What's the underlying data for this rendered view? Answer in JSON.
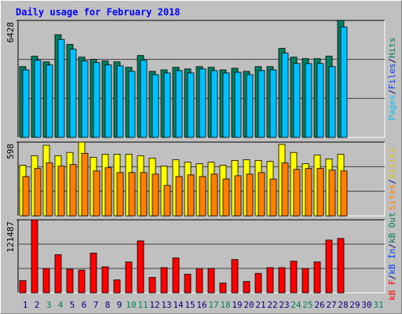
{
  "chart_data": [
    {
      "type": "bar",
      "title": "Daily usage for February 2018",
      "ylim": [
        0,
        6428
      ],
      "yticks": [
        6428
      ],
      "y_label_parts": [
        {
          "text": "Pages",
          "color": "#00c0ff"
        },
        {
          "text": "/",
          "color": "#000080"
        },
        {
          "text": "Files",
          "color": "#0040ff"
        },
        {
          "text": "/",
          "color": "#000080"
        },
        {
          "text": "Hits",
          "color": "#008060"
        }
      ],
      "series": [
        {
          "name": "Hits",
          "color": "#008060",
          "values": [
            3890,
            4460,
            4150,
            5640,
            5110,
            4410,
            4280,
            4200,
            4150,
            3850,
            4500,
            3630,
            3710,
            3850,
            3760,
            3890,
            3850,
            3710,
            3800,
            3630,
            3890,
            3890,
            4890,
            4410,
            4330,
            4330,
            4460,
            6428,
            null,
            null,
            null
          ]
        },
        {
          "name": "Files",
          "color": "#00c0ff",
          "values": [
            3710,
            4240,
            3980,
            5380,
            4850,
            4200,
            4110,
            3980,
            3930,
            3630,
            4240,
            3450,
            3540,
            3670,
            3540,
            3760,
            3670,
            3540,
            3580,
            3450,
            3670,
            3710,
            4630,
            4060,
            4060,
            4060,
            3890,
            6070,
            null,
            null,
            null
          ]
        }
      ]
    },
    {
      "type": "bar",
      "ylim": [
        0,
        598
      ],
      "yticks": [
        598
      ],
      "y_label_parts": [
        {
          "text": "Sites",
          "color": "#ff8000"
        },
        {
          "text": "/",
          "color": "#000080"
        },
        {
          "text": "Visits",
          "color": "#e0c000"
        }
      ],
      "series": [
        {
          "name": "Visits",
          "color": "#ffff00",
          "values": [
            410,
            488,
            572,
            488,
            514,
            598,
            475,
            500,
            500,
            500,
            488,
            468,
            403,
            455,
            436,
            423,
            436,
            410,
            449,
            455,
            449,
            442,
            579,
            514,
            423,
            494,
            462,
            500,
            null,
            null,
            null
          ]
        },
        {
          "name": "Sites",
          "color": "#ff8000",
          "values": [
            319,
            384,
            429,
            403,
            416,
            507,
            364,
            390,
            351,
            351,
            351,
            338,
            247,
            319,
            332,
            319,
            338,
            299,
            325,
            338,
            351,
            299,
            429,
            377,
            384,
            384,
            371,
            364,
            null,
            null,
            null
          ]
        }
      ]
    },
    {
      "type": "bar",
      "ylim": [
        0,
        121487
      ],
      "yticks": [
        121487
      ],
      "y_label_parts": [
        {
          "text": "kB F",
          "color": "#ff0000"
        },
        {
          "text": "/",
          "color": "#000080"
        },
        {
          "text": "kB In",
          "color": "#0040ff"
        },
        {
          "text": "/",
          "color": "#000080"
        },
        {
          "text": "kB Out",
          "color": "#008060"
        }
      ],
      "categories": [
        "1",
        "2",
        "3",
        "4",
        "5",
        "6",
        "7",
        "8",
        "9",
        "10",
        "11",
        "12",
        "13",
        "14",
        "15",
        "16",
        "17",
        "18",
        "19",
        "20",
        "21",
        "22",
        "23",
        "24",
        "25",
        "26",
        "27",
        "28",
        "29",
        "30",
        "31"
      ],
      "category_colors": [
        "#000080",
        "#000080",
        "#008060",
        "#008060",
        "#000080",
        "#000080",
        "#000080",
        "#000080",
        "#000080",
        "#008060",
        "#008060",
        "#000080",
        "#000080",
        "#000080",
        "#000080",
        "#000080",
        "#008060",
        "#008060",
        "#000080",
        "#000080",
        "#000080",
        "#000080",
        "#000080",
        "#008060",
        "#008060",
        "#000080",
        "#000080",
        "#000080",
        "#000080",
        "#000080",
        "#008060"
      ],
      "series": [
        {
          "name": "kB F",
          "color": "#ff0000",
          "values": [
            20250,
            121487,
            40500,
            63450,
            39150,
            37800,
            66150,
            43200,
            21600,
            51300,
            86400,
            25650,
            41850,
            58050,
            31050,
            40500,
            40500,
            16200,
            55350,
            18900,
            32400,
            41850,
            41850,
            52650,
            40500,
            51300,
            87750,
            90450,
            null,
            null,
            null
          ]
        }
      ]
    }
  ]
}
